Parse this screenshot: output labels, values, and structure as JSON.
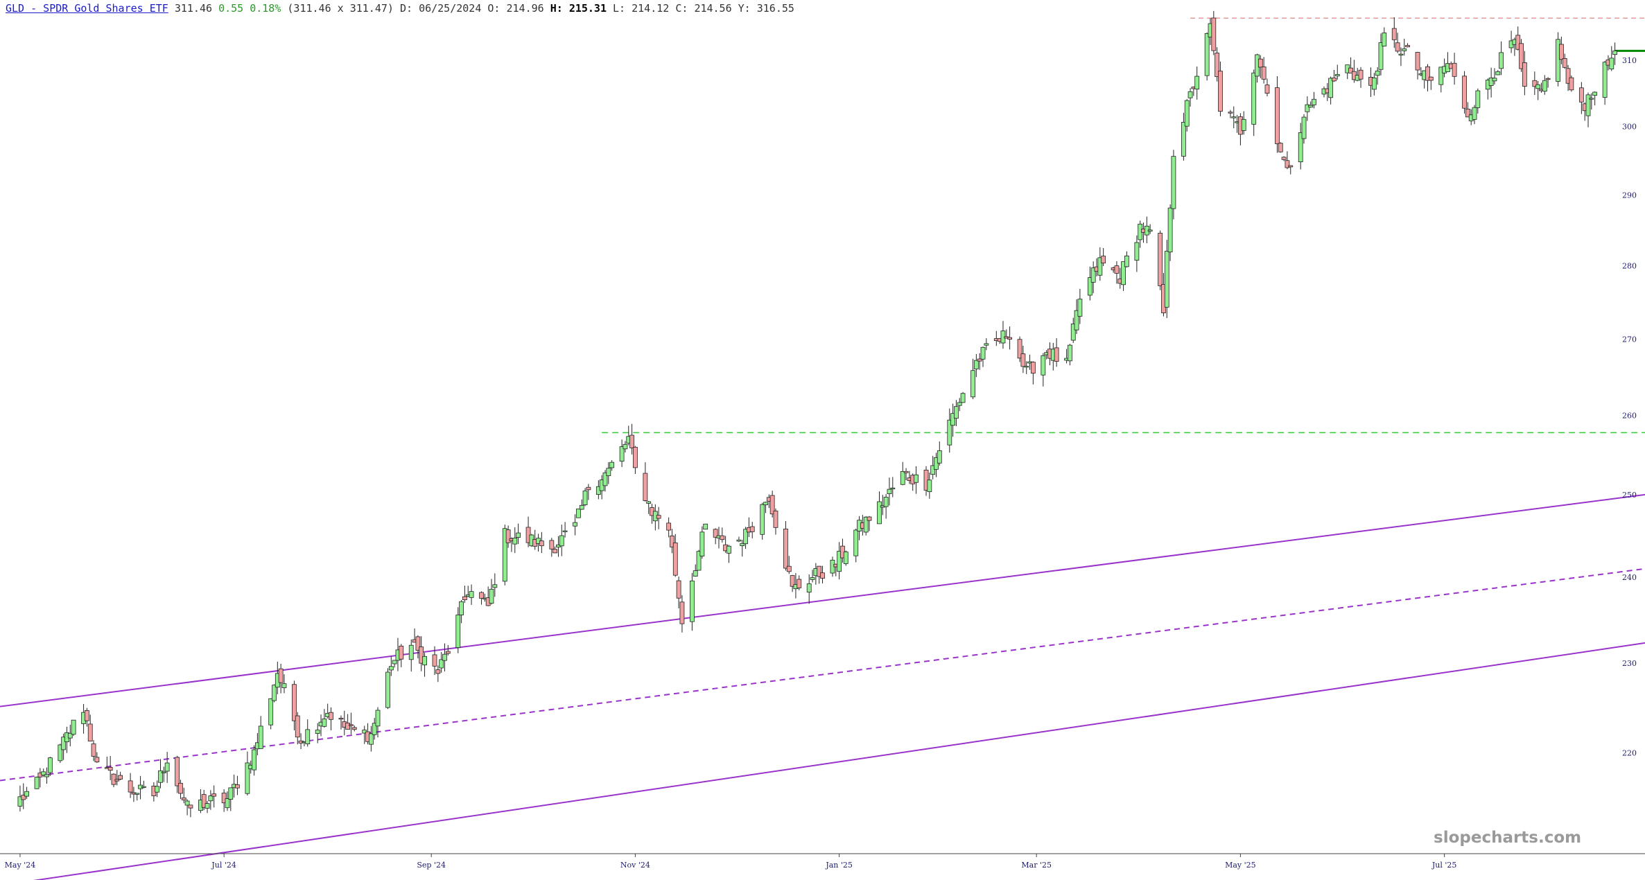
{
  "header": {
    "symbol_link": "GLD - SPDR Gold Shares ETF",
    "last": "311.46",
    "change": "0.55",
    "change_pct": "0.18%",
    "bid_ask": "(311.46 x 311.47)",
    "date_label": "D:",
    "date": "06/25/2024",
    "open_label": "O:",
    "open": "214.96",
    "high_label": "H:",
    "high": "215.31",
    "low_label": "L:",
    "low": "214.12",
    "close_label": "C:",
    "close": "214.56",
    "y_label": "Y:",
    "y": "316.55"
  },
  "watermark": "slopecharts.com",
  "colors": {
    "up": "#90ee90",
    "down": "#f0a0a0",
    "channel": "#9933cc",
    "support_dashed": "#33cc33",
    "resistance_dashed": "#e06666",
    "last_price": "#008800",
    "axis_text": "#1a1a6e"
  },
  "chart_data": {
    "type": "candlestick",
    "x_axis": {
      "start": "2024-04-25",
      "end": "2025-08-30",
      "ticks": [
        {
          "label": "May '24",
          "date": "2024-05-01"
        },
        {
          "label": "Jul '24",
          "date": "2024-07-01"
        },
        {
          "label": "Sep '24",
          "date": "2024-09-01"
        },
        {
          "label": "Nov '24",
          "date": "2024-11-01"
        },
        {
          "label": "Jan '25",
          "date": "2025-01-01"
        },
        {
          "label": "Mar '25",
          "date": "2025-03-01"
        },
        {
          "label": "May '25",
          "date": "2025-05-01"
        },
        {
          "label": "Jul '25",
          "date": "2025-07-01"
        }
      ]
    },
    "y_axis": {
      "scale": "log",
      "min": 210,
      "max": 317,
      "ticks": [
        "220",
        "230",
        "240",
        "250",
        "260",
        "270",
        "280",
        "290",
        "300",
        "310"
      ]
    },
    "last_price": 311.46,
    "resistance_level": 316.55,
    "support_level": 257.8,
    "channel": {
      "upper": [
        {
          "date": "2024-04-25",
          "value": 225.1
        },
        {
          "date": "2025-08-30",
          "value": 250.0
        }
      ],
      "middle": [
        {
          "date": "2024-04-25",
          "value": 217.0
        },
        {
          "date": "2025-08-30",
          "value": 241.0
        }
      ],
      "lower": [
        {
          "date": "2024-04-25",
          "value": 206.0
        },
        {
          "date": "2025-08-30",
          "value": 232.3
        }
      ]
    },
    "anchors": [
      [
        "2024-05-01",
        215.0
      ],
      [
        "2024-05-06",
        216.5
      ],
      [
        "2024-05-13",
        220.5
      ],
      [
        "2024-05-20",
        225.0
      ],
      [
        "2024-05-24",
        218.5
      ],
      [
        "2024-06-03",
        216.0
      ],
      [
        "2024-06-10",
        215.5
      ],
      [
        "2024-06-14",
        219.5
      ],
      [
        "2024-06-20",
        214.0
      ],
      [
        "2024-06-25",
        214.6
      ],
      [
        "2024-07-02",
        215.0
      ],
      [
        "2024-07-10",
        220.0
      ],
      [
        "2024-07-17",
        229.0
      ],
      [
        "2024-07-24",
        221.5
      ],
      [
        "2024-08-01",
        224.5
      ],
      [
        "2024-08-07",
        222.5
      ],
      [
        "2024-08-14",
        222.0
      ],
      [
        "2024-08-20",
        230.0
      ],
      [
        "2024-08-26",
        232.0
      ],
      [
        "2024-09-03",
        229.0
      ],
      [
        "2024-09-06",
        231.5
      ],
      [
        "2024-09-12",
        238.5
      ],
      [
        "2024-09-18",
        236.5
      ],
      [
        "2024-09-23",
        245.0
      ],
      [
        "2024-09-30",
        244.5
      ],
      [
        "2024-10-07",
        243.5
      ],
      [
        "2024-10-14",
        246.0
      ],
      [
        "2024-10-18",
        251.0
      ],
      [
        "2024-10-24",
        253.0
      ],
      [
        "2024-10-30",
        257.0
      ],
      [
        "2024-11-01",
        253.0
      ],
      [
        "2024-11-06",
        248.0
      ],
      [
        "2024-11-11",
        246.0
      ],
      [
        "2024-11-15",
        235.0
      ],
      [
        "2024-11-19",
        241.5
      ],
      [
        "2024-11-22",
        246.0
      ],
      [
        "2024-11-28",
        243.5
      ],
      [
        "2024-12-04",
        245.0
      ],
      [
        "2024-12-11",
        250.0
      ],
      [
        "2024-12-18",
        238.5
      ],
      [
        "2024-12-24",
        240.0
      ],
      [
        "2024-12-31",
        241.5
      ],
      [
        "2025-01-06",
        245.5
      ],
      [
        "2025-01-13",
        248.5
      ],
      [
        "2025-01-20",
        252.5
      ],
      [
        "2025-01-27",
        251.5
      ],
      [
        "2025-02-03",
        259.0
      ],
      [
        "2025-02-07",
        263.0
      ],
      [
        "2025-02-11",
        267.0
      ],
      [
        "2025-02-14",
        268.5
      ],
      [
        "2025-02-21",
        271.0
      ],
      [
        "2025-02-26",
        265.5
      ],
      [
        "2025-03-04",
        268.5
      ],
      [
        "2025-03-10",
        266.5
      ],
      [
        "2025-03-14",
        275.5
      ],
      [
        "2025-03-20",
        280.5
      ],
      [
        "2025-03-26",
        278.5
      ],
      [
        "2025-04-01",
        285.5
      ],
      [
        "2025-04-04",
        284.5
      ],
      [
        "2025-04-08",
        273.5
      ],
      [
        "2025-04-11",
        296.5
      ],
      [
        "2025-04-16",
        304.5
      ],
      [
        "2025-04-22",
        315.0
      ],
      [
        "2025-04-25",
        303.0
      ],
      [
        "2025-05-01",
        299.5
      ],
      [
        "2025-05-06",
        311.5
      ],
      [
        "2025-05-12",
        298.5
      ],
      [
        "2025-05-15",
        293.0
      ],
      [
        "2025-05-20",
        302.0
      ],
      [
        "2025-05-26",
        305.5
      ],
      [
        "2025-06-02",
        309.0
      ],
      [
        "2025-06-09",
        305.5
      ],
      [
        "2025-06-13",
        313.5
      ],
      [
        "2025-06-20",
        311.0
      ],
      [
        "2025-06-26",
        306.5
      ],
      [
        "2025-07-02",
        309.5
      ],
      [
        "2025-07-08",
        302.0
      ],
      [
        "2025-07-14",
        307.0
      ],
      [
        "2025-07-22",
        313.0
      ],
      [
        "2025-07-25",
        305.5
      ],
      [
        "2025-07-30",
        305.0
      ],
      [
        "2025-08-04",
        312.5
      ],
      [
        "2025-08-08",
        304.5
      ],
      [
        "2025-08-12",
        303.5
      ],
      [
        "2025-08-18",
        308.5
      ],
      [
        "2025-08-21",
        311.46
      ]
    ]
  }
}
